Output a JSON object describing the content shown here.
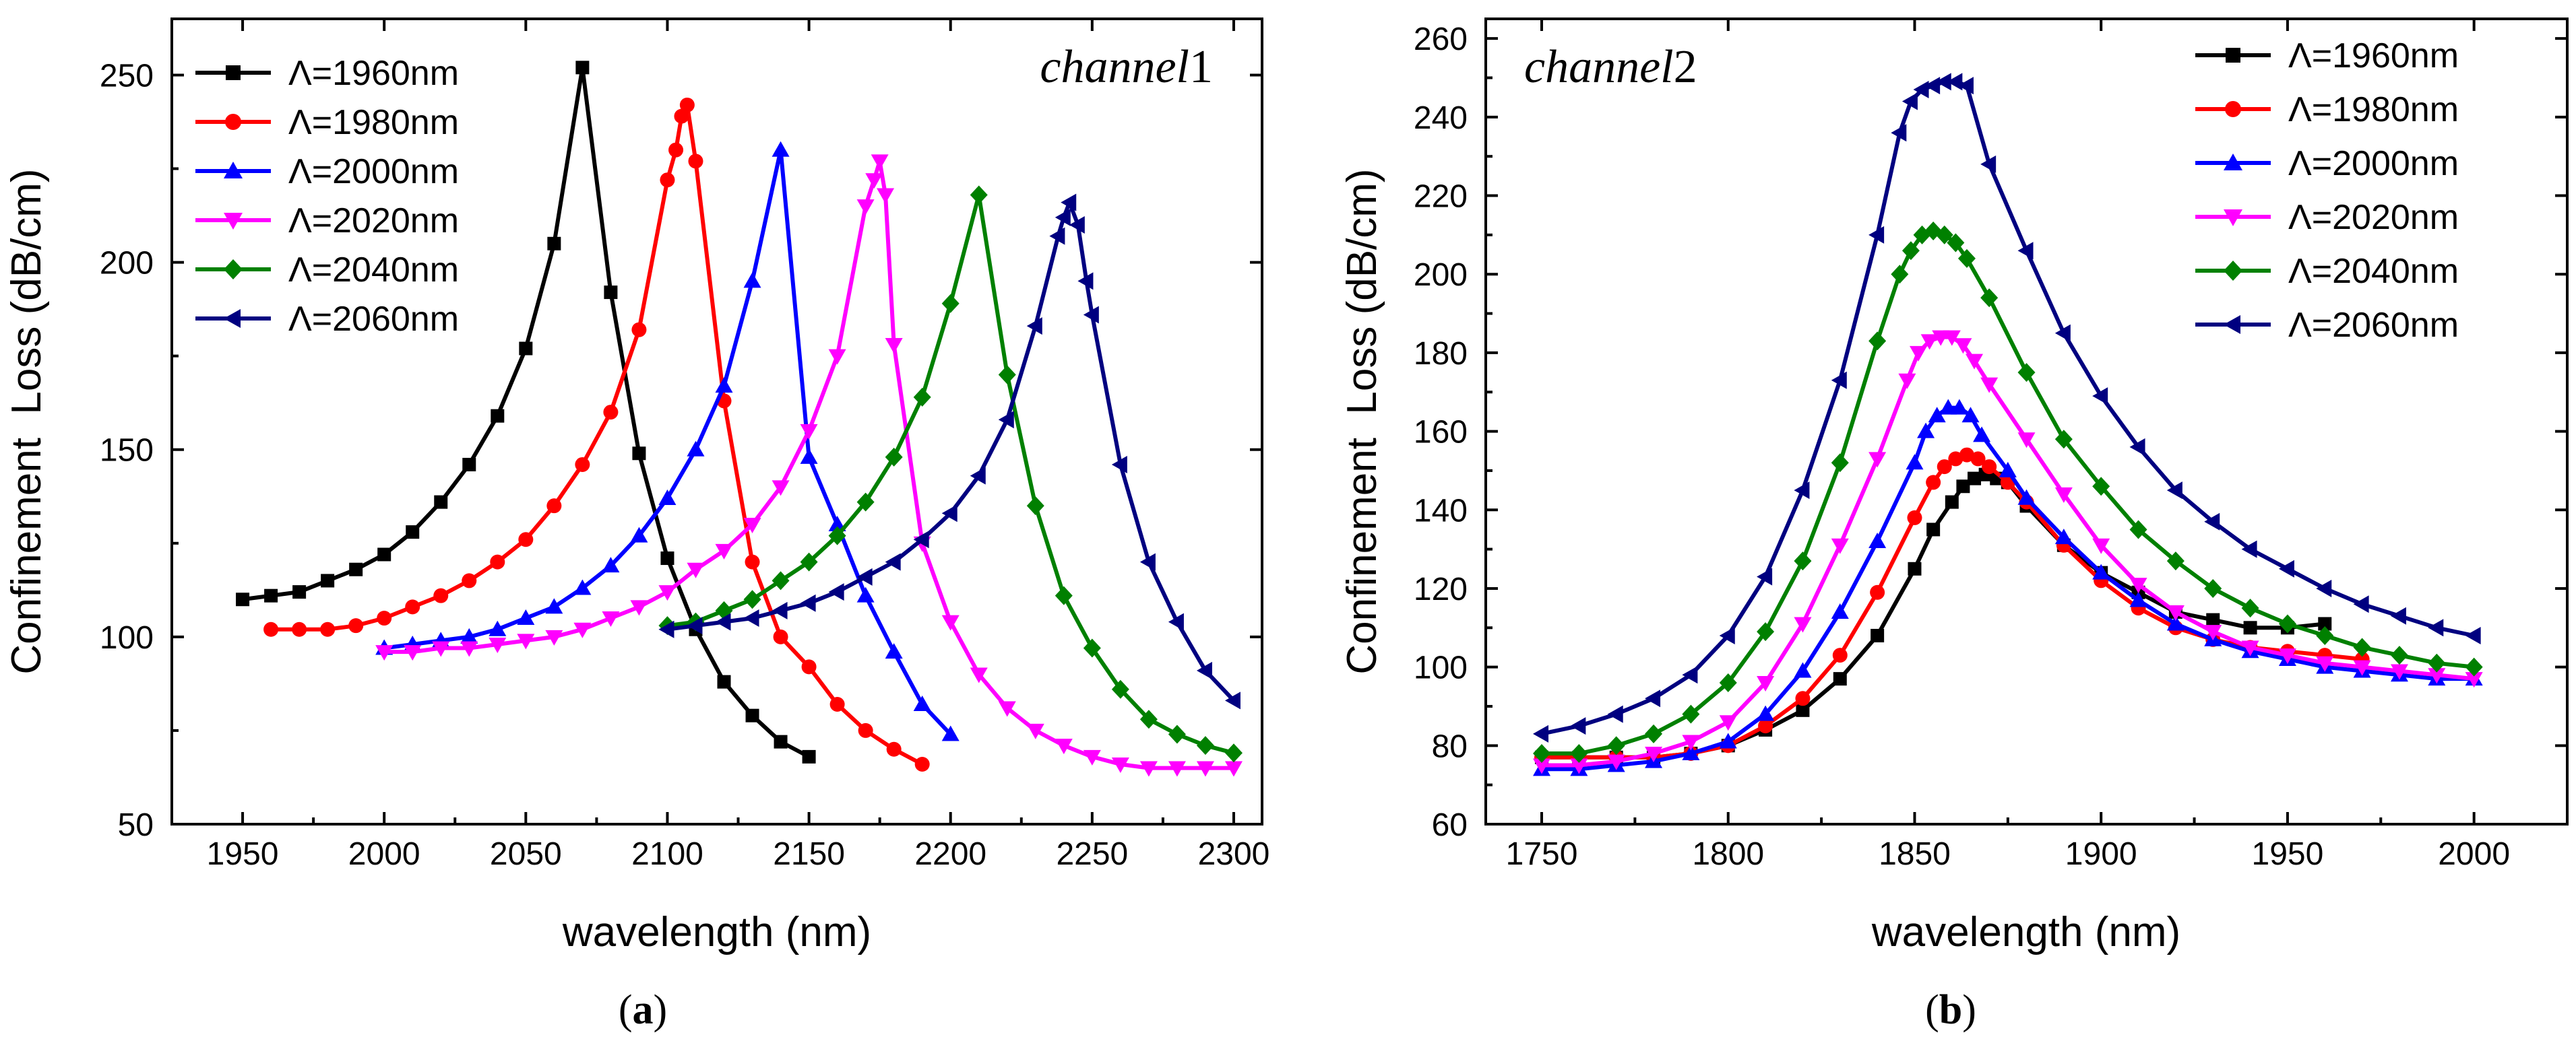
{
  "chart_data": [
    {
      "type": "line",
      "panel_label": {
        "open": "(",
        "letter": "a",
        "close": ")"
      },
      "annotation": {
        "italic": "channel",
        "num": "1"
      },
      "xlabel": "wavelength (nm)",
      "ylabel": "Confinement  Loss (dB/cm)",
      "xlim": [
        1925,
        2310
      ],
      "ylim": [
        50,
        265
      ],
      "xticks": [
        1950,
        2000,
        2050,
        2100,
        2150,
        2200,
        2250,
        2300
      ],
      "yticks": [
        50,
        100,
        150,
        200,
        250
      ],
      "legend_position": "top-left",
      "series": [
        {
          "name": "Λ=1960nm",
          "color": "#000000",
          "marker": "square",
          "x": [
            1950,
            1960,
            1970,
            1980,
            1990,
            2000,
            2010,
            2020,
            2030,
            2040,
            2050,
            2060,
            2070,
            2080,
            2090,
            2100,
            2110,
            2120,
            2130,
            2140,
            2150
          ],
          "y": [
            110,
            111,
            112,
            115,
            118,
            122,
            128,
            136,
            146,
            159,
            177,
            205,
            252,
            192,
            149,
            121,
            102,
            88,
            79,
            72,
            68
          ]
        },
        {
          "name": "Λ=1980nm",
          "color": "#ff0000",
          "marker": "circle",
          "x": [
            1960,
            1970,
            1980,
            1990,
            2000,
            2010,
            2020,
            2030,
            2040,
            2050,
            2060,
            2070,
            2080,
            2090,
            2100,
            2103,
            2105,
            2107,
            2110,
            2120,
            2130,
            2140,
            2150,
            2160,
            2170,
            2180,
            2190
          ],
          "y": [
            102,
            102,
            102,
            103,
            105,
            108,
            111,
            115,
            120,
            126,
            135,
            146,
            160,
            182,
            222,
            230,
            239,
            242,
            227,
            163,
            120,
            100,
            92,
            82,
            75,
            70,
            66
          ]
        },
        {
          "name": "Λ=2000nm",
          "color": "#0000ff",
          "marker": "triangle-up",
          "x": [
            2000,
            2010,
            2020,
            2030,
            2040,
            2050,
            2060,
            2070,
            2080,
            2090,
            2100,
            2110,
            2120,
            2130,
            2140,
            2150,
            2160,
            2170,
            2180,
            2190,
            2200
          ],
          "y": [
            97,
            98,
            99,
            100,
            102,
            105,
            108,
            113,
            119,
            127,
            137,
            150,
            167,
            195,
            230,
            148,
            130,
            111,
            96,
            82,
            74
          ]
        },
        {
          "name": "Λ=2020nm",
          "color": "#ff00ff",
          "marker": "triangle-down",
          "x": [
            2000,
            2010,
            2020,
            2030,
            2040,
            2050,
            2060,
            2070,
            2080,
            2090,
            2100,
            2110,
            2120,
            2130,
            2140,
            2150,
            2160,
            2170,
            2173,
            2175,
            2177,
            2180,
            2190,
            2200,
            2210,
            2220,
            2230,
            2240,
            2250,
            2260,
            2270,
            2280,
            2290,
            2300
          ],
          "y": [
            96,
            96,
            97,
            97,
            98,
            99,
            100,
            102,
            105,
            108,
            112,
            118,
            123,
            130,
            140,
            155,
            175,
            215,
            222,
            227,
            218,
            178,
            125,
            104,
            90,
            81,
            75,
            71,
            68,
            66,
            65,
            65,
            65,
            65
          ]
        },
        {
          "name": "Λ=2040nm",
          "color": "#008000",
          "marker": "diamond",
          "x": [
            2100,
            2110,
            2120,
            2130,
            2140,
            2150,
            2160,
            2170,
            2180,
            2190,
            2200,
            2210,
            2220,
            2230,
            2240,
            2250,
            2260,
            2270,
            2280,
            2290,
            2300
          ],
          "y": [
            103,
            104,
            107,
            110,
            115,
            120,
            127,
            136,
            148,
            164,
            189,
            218,
            170,
            135,
            111,
            97,
            86,
            78,
            74,
            71,
            69
          ]
        },
        {
          "name": "Λ=2060nm",
          "color": "#000080",
          "marker": "triangle-left",
          "x": [
            2100,
            2110,
            2120,
            2130,
            2140,
            2150,
            2160,
            2170,
            2180,
            2190,
            2200,
            2210,
            2220,
            2230,
            2238,
            2240,
            2242,
            2245,
            2248,
            2250,
            2260,
            2270,
            2280,
            2290,
            2300
          ],
          "y": [
            102,
            103,
            104,
            105,
            107,
            109,
            112,
            116,
            120,
            126,
            133,
            143,
            158,
            183,
            207,
            212,
            216,
            210,
            195,
            186,
            146,
            120,
            104,
            91,
            83
          ]
        }
      ]
    },
    {
      "type": "line",
      "panel_label": {
        "open": "(",
        "letter": "b",
        "close": ")"
      },
      "annotation": {
        "italic": "channel",
        "num": "2"
      },
      "xlabel": "wavelength (nm)",
      "ylabel": "Confinement  Loss (dB/cm)",
      "xlim": [
        1735,
        2025
      ],
      "ylim": [
        60,
        265
      ],
      "xticks": [
        1750,
        1800,
        1850,
        1900,
        1950,
        2000
      ],
      "yticks": [
        60,
        80,
        100,
        120,
        140,
        160,
        180,
        200,
        220,
        240,
        260
      ],
      "legend_position": "top-right",
      "series": [
        {
          "name": "Λ=1960nm",
          "color": "#000000",
          "marker": "square",
          "x": [
            1750,
            1760,
            1770,
            1780,
            1790,
            1800,
            1810,
            1820,
            1830,
            1840,
            1850,
            1855,
            1860,
            1863,
            1866,
            1869,
            1872,
            1875,
            1880,
            1890,
            1900,
            1910,
            1920,
            1930,
            1940,
            1950,
            1960
          ],
          "y": [
            77,
            77,
            77,
            77,
            78,
            80,
            84,
            89,
            97,
            108,
            125,
            135,
            142,
            146,
            148,
            149,
            148,
            147,
            141,
            131,
            124,
            119,
            114,
            112,
            110,
            110,
            111
          ]
        },
        {
          "name": "Λ=1980nm",
          "color": "#ff0000",
          "marker": "circle",
          "x": [
            1750,
            1760,
            1770,
            1780,
            1790,
            1800,
            1810,
            1820,
            1830,
            1840,
            1850,
            1855,
            1858,
            1861,
            1864,
            1867,
            1870,
            1875,
            1880,
            1890,
            1900,
            1910,
            1920,
            1930,
            1940,
            1950,
            1960,
            1970
          ],
          "y": [
            77,
            77,
            77,
            77,
            78,
            80,
            85,
            92,
            103,
            119,
            138,
            147,
            151,
            153,
            154,
            153,
            151,
            147,
            142,
            131,
            122,
            115,
            110,
            107,
            105,
            104,
            103,
            102
          ]
        },
        {
          "name": "Λ=2000nm",
          "color": "#0000ff",
          "marker": "triangle-up",
          "x": [
            1750,
            1760,
            1770,
            1780,
            1790,
            1800,
            1810,
            1820,
            1830,
            1840,
            1850,
            1853,
            1856,
            1859,
            1862,
            1865,
            1868,
            1875,
            1880,
            1890,
            1900,
            1910,
            1920,
            1930,
            1940,
            1950,
            1960,
            1970,
            1980,
            1990,
            2000
          ],
          "y": [
            74,
            74,
            75,
            76,
            78,
            81,
            88,
            99,
            114,
            132,
            152,
            160,
            164,
            166,
            166,
            164,
            159,
            150,
            143,
            133,
            124,
            117,
            111,
            107,
            104,
            102,
            100,
            99,
            98,
            97,
            97
          ]
        },
        {
          "name": "Λ=2020nm",
          "color": "#ff00ff",
          "marker": "triangle-down",
          "x": [
            1750,
            1760,
            1770,
            1780,
            1790,
            1800,
            1810,
            1820,
            1830,
            1840,
            1848,
            1851,
            1854,
            1857,
            1860,
            1863,
            1866,
            1870,
            1880,
            1890,
            1900,
            1910,
            1920,
            1930,
            1940,
            1950,
            1960,
            1970,
            1980,
            1990,
            2000
          ],
          "y": [
            75,
            75,
            76,
            78,
            81,
            86,
            96,
            111,
            131,
            153,
            173,
            180,
            183,
            184,
            184,
            182,
            178,
            172,
            158,
            144,
            131,
            121,
            114,
            109,
            105,
            103,
            101,
            100,
            99,
            98,
            97
          ]
        },
        {
          "name": "Λ=2040nm",
          "color": "#008000",
          "marker": "diamond",
          "x": [
            1750,
            1760,
            1770,
            1780,
            1790,
            1800,
            1810,
            1820,
            1830,
            1840,
            1846,
            1849,
            1852,
            1855,
            1858,
            1861,
            1864,
            1870,
            1880,
            1890,
            1900,
            1910,
            1920,
            1930,
            1940,
            1950,
            1960,
            1970,
            1980,
            1990,
            2000
          ],
          "y": [
            78,
            78,
            80,
            83,
            88,
            96,
            109,
            127,
            152,
            183,
            200,
            206,
            210,
            211,
            210,
            208,
            204,
            194,
            175,
            158,
            146,
            135,
            127,
            120,
            115,
            111,
            108,
            105,
            103,
            101,
            100
          ]
        },
        {
          "name": "Λ=2060nm",
          "color": "#000080",
          "marker": "triangle-left",
          "x": [
            1750,
            1760,
            1770,
            1780,
            1790,
            1800,
            1810,
            1820,
            1830,
            1840,
            1846,
            1849,
            1852,
            1855,
            1858,
            1861,
            1864,
            1870,
            1880,
            1890,
            1900,
            1910,
            1920,
            1930,
            1940,
            1950,
            1960,
            1970,
            1980,
            1990,
            2000
          ],
          "y": [
            83,
            85,
            88,
            92,
            98,
            108,
            123,
            145,
            173,
            210,
            236,
            244,
            247,
            248,
            249,
            249,
            248,
            228,
            206,
            185,
            169,
            156,
            145,
            137,
            130,
            125,
            120,
            116,
            113,
            110,
            108
          ]
        }
      ]
    }
  ]
}
